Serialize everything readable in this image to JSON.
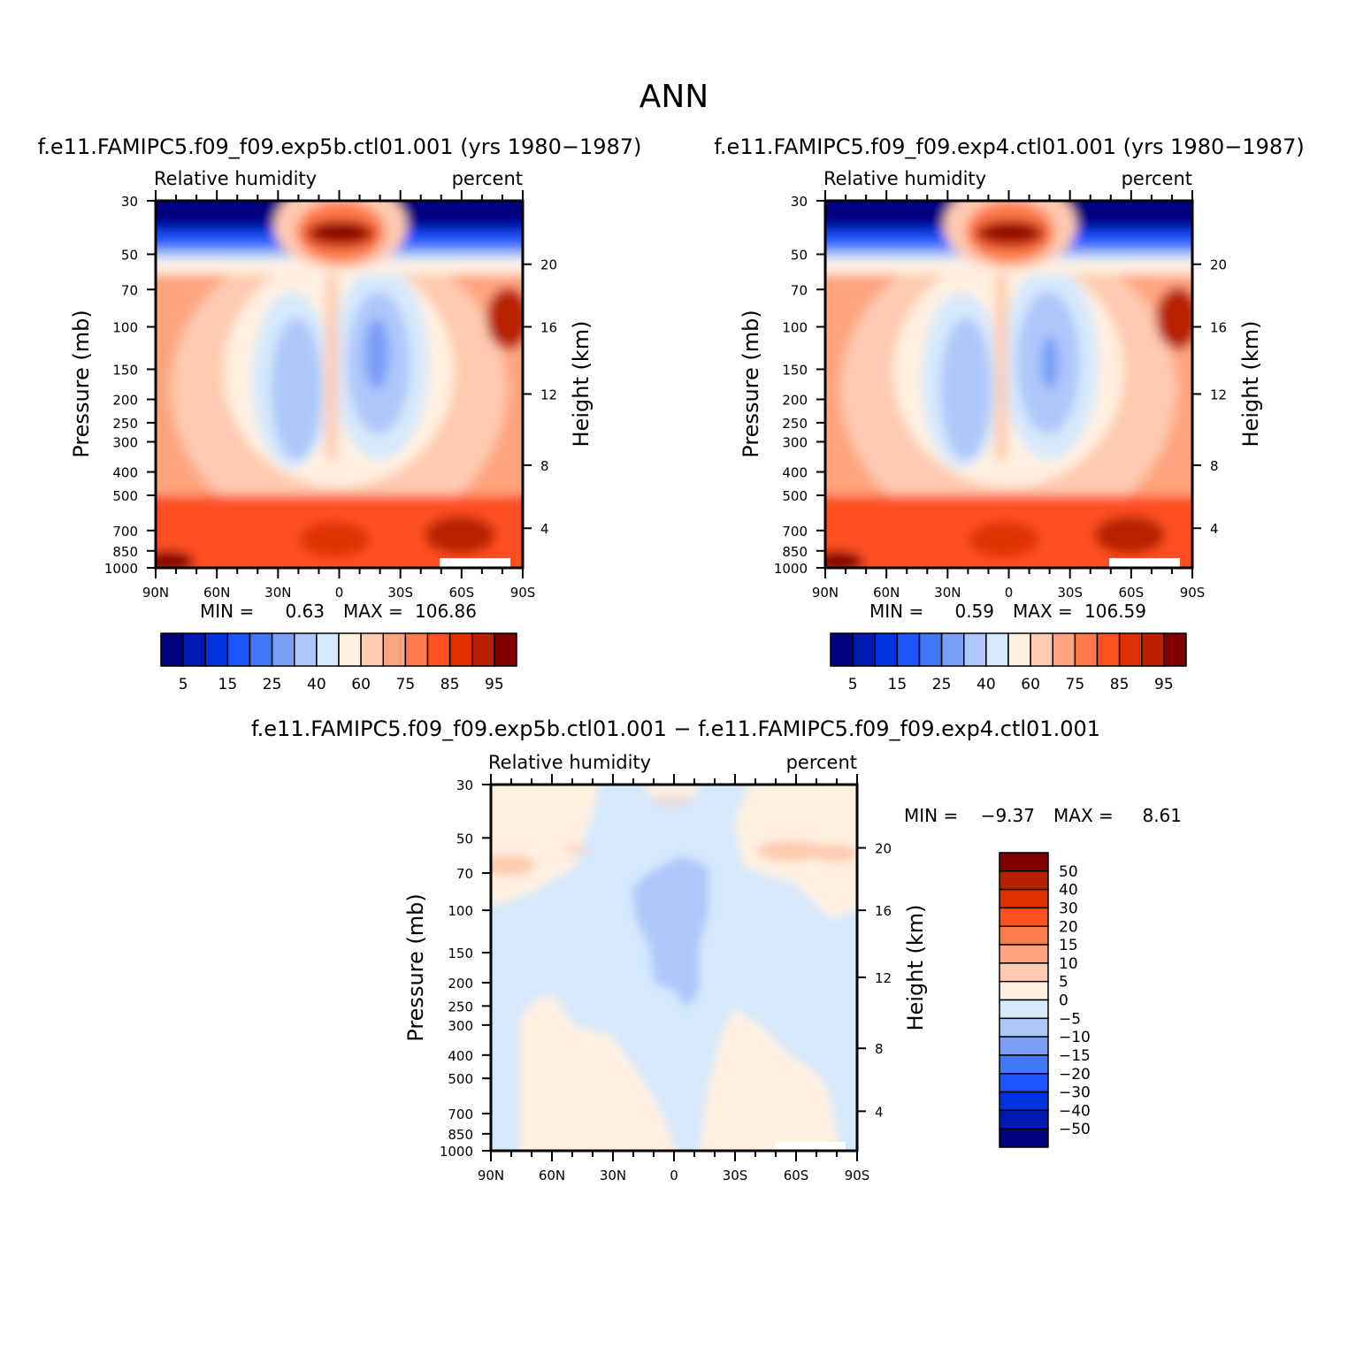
{
  "figure": {
    "title": "ANN"
  },
  "colors": {
    "rh_levels": [
      "#000080",
      "#0019b0",
      "#0033e0",
      "#1a55ff",
      "#4178f5",
      "#7a9ff7",
      "#adc6fa",
      "#d5e8fc",
      "#fff0e0",
      "#ffcab0",
      "#ffa47e",
      "#ff7a4a",
      "#ff5020",
      "#e03000",
      "#b82000",
      "#800000"
    ],
    "diff_levels": [
      "#000080",
      "#0019b0",
      "#0033e0",
      "#1a55ff",
      "#4178f5",
      "#7a9ff7",
      "#adc6fa",
      "#d5e8fc",
      "#fff0e0",
      "#ffcab0",
      "#ffa47e",
      "#ff7a4a",
      "#ff5020",
      "#e03000",
      "#b82000",
      "#800000"
    ]
  },
  "chart_data": [
    {
      "type": "heatmap",
      "id": "panel-exp5b",
      "case_title": "f.e11.FAMIPC5.f09_f09.exp5b.ctl01.001 (yrs 1980−1987)",
      "left_label": "Relative humidity",
      "right_label": "percent",
      "ylabel": "Pressure (mb)",
      "y2label": "Height (km)",
      "x_ticks": [
        "90N",
        "60N",
        "30N",
        "0",
        "30S",
        "60S",
        "90S"
      ],
      "y_ticks": [
        "30",
        "50",
        "70",
        "100",
        "150",
        "200",
        "250",
        "300",
        "400",
        "500",
        "700",
        "850",
        "1000"
      ],
      "y_tick_values": [
        30,
        50,
        70,
        100,
        150,
        200,
        250,
        300,
        400,
        500,
        700,
        850,
        1000
      ],
      "y2_ticks": [
        "20",
        "16",
        "12",
        "8",
        "4"
      ],
      "y2_tick_pressures": [
        55,
        100,
        190,
        375,
        685
      ],
      "min_label": "MIN =",
      "min_value": "0.63",
      "max_label": "MAX =",
      "max_value": "106.86",
      "colorbar_labels": [
        "5",
        "15",
        "25",
        "40",
        "60",
        "75",
        "85",
        "95"
      ],
      "z_min": 0.63,
      "z_max": 106.86
    },
    {
      "type": "heatmap",
      "id": "panel-exp4",
      "case_title": "f.e11.FAMIPC5.f09_f09.exp4.ctl01.001 (yrs 1980−1987)",
      "left_label": "Relative humidity",
      "right_label": "percent",
      "ylabel": "Pressure (mb)",
      "y2label": "Height (km)",
      "x_ticks": [
        "90N",
        "60N",
        "30N",
        "0",
        "30S",
        "60S",
        "90S"
      ],
      "y_ticks": [
        "30",
        "50",
        "70",
        "100",
        "150",
        "200",
        "250",
        "300",
        "400",
        "500",
        "700",
        "850",
        "1000"
      ],
      "y_tick_values": [
        30,
        50,
        70,
        100,
        150,
        200,
        250,
        300,
        400,
        500,
        700,
        850,
        1000
      ],
      "y2_ticks": [
        "20",
        "16",
        "12",
        "8",
        "4"
      ],
      "y2_tick_pressures": [
        55,
        100,
        190,
        375,
        685
      ],
      "min_label": "MIN =",
      "min_value": "0.59",
      "max_label": "MAX =",
      "max_value": "106.59",
      "colorbar_labels": [
        "5",
        "15",
        "25",
        "40",
        "60",
        "75",
        "85",
        "95"
      ],
      "z_min": 0.59,
      "z_max": 106.59
    },
    {
      "type": "heatmap",
      "id": "panel-diff",
      "case_title": "f.e11.FAMIPC5.f09_f09.exp5b.ctl01.001 − f.e11.FAMIPC5.f09_f09.exp4.ctl01.001",
      "left_label": "Relative humidity",
      "right_label": "percent",
      "ylabel": "Pressure (mb)",
      "y2label": "Height (km)",
      "x_ticks": [
        "90N",
        "60N",
        "30N",
        "0",
        "30S",
        "60S",
        "90S"
      ],
      "y_ticks": [
        "30",
        "50",
        "70",
        "100",
        "150",
        "200",
        "250",
        "300",
        "400",
        "500",
        "700",
        "850",
        "1000"
      ],
      "y_tick_values": [
        30,
        50,
        70,
        100,
        150,
        200,
        250,
        300,
        400,
        500,
        700,
        850,
        1000
      ],
      "y2_ticks": [
        "20",
        "16",
        "12",
        "8",
        "4"
      ],
      "y2_tick_pressures": [
        55,
        100,
        190,
        375,
        685
      ],
      "min_label": "MIN =",
      "min_value": "−9.37",
      "max_label": "MAX =",
      "max_value": "8.61",
      "colorbar_labels": [
        "50",
        "40",
        "30",
        "20",
        "15",
        "10",
        "5",
        "0",
        "−5",
        "−10",
        "−15",
        "−20",
        "−30",
        "−40",
        "−50"
      ],
      "z_min": -9.37,
      "z_max": 8.61
    }
  ]
}
